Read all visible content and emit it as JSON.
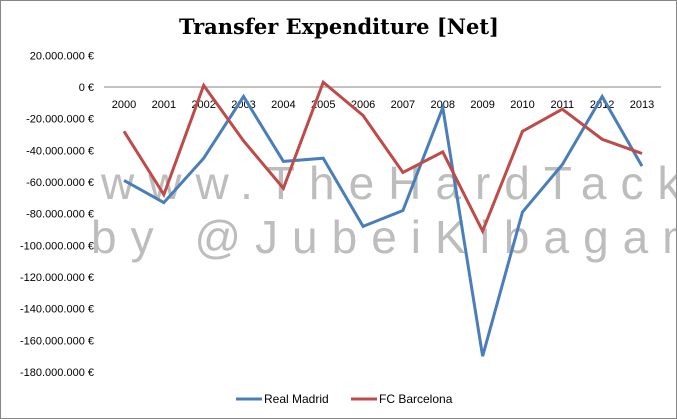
{
  "chart_data": {
    "type": "line",
    "title": "Transfer Expenditure [Net]",
    "xlabel": "",
    "ylabel": "",
    "categories": [
      "2000",
      "2001",
      "2002",
      "2003",
      "2004",
      "2005",
      "2006",
      "2007",
      "2008",
      "2009",
      "2010",
      "2011",
      "2012",
      "2013"
    ],
    "ylim": [
      -180000000,
      20000000
    ],
    "yticks": [
      20000000,
      0,
      -20000000,
      -40000000,
      -60000000,
      -80000000,
      -100000000,
      -120000000,
      -140000000,
      -160000000,
      -180000000
    ],
    "ytick_labels": [
      "20.000.000 €",
      "0 €",
      "-20.000.000 €",
      "-40.000.000 €",
      "-60.000.000 €",
      "-80.000.000 €",
      "-100.000.000 €",
      "-120.000.000 €",
      "-140.000.000 €",
      "-160.000.000 €",
      "-180.000.000 €"
    ],
    "grid": false,
    "legend_position": "bottom",
    "series": [
      {
        "name": "Real Madrid",
        "color": "#4a7ebb",
        "values": [
          -59000000,
          -73000000,
          -45000000,
          -6000000,
          -47000000,
          -45000000,
          -88000000,
          -78000000,
          -13000000,
          -170000000,
          -79000000,
          -49000000,
          -6000000,
          -50000000
        ]
      },
      {
        "name": "FC Barcelona",
        "color": "#be4b48",
        "values": [
          -28000000,
          -68000000,
          1000000,
          -34000000,
          -64000000,
          3000000,
          -18000000,
          -54000000,
          -41000000,
          -91000000,
          -28000000,
          -14000000,
          -33000000,
          -42000000
        ]
      }
    ],
    "watermark": [
      "www.TheHardTackle.com",
      "by @JubeiKibagame"
    ]
  }
}
